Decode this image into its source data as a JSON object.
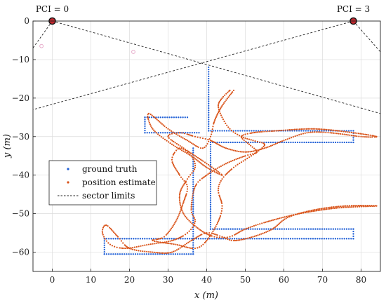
{
  "chart_data": {
    "type": "scatter",
    "xlabel": "x (m)",
    "ylabel": "y (m)",
    "xlim": [
      -5,
      85
    ],
    "ylim": [
      -65,
      0
    ],
    "xticks": [
      0,
      10,
      20,
      30,
      40,
      50,
      60,
      70,
      80
    ],
    "yticks": [
      0,
      -10,
      -20,
      -30,
      -40,
      -50,
      -60
    ],
    "grid": true,
    "legend_position": "left",
    "anchors": [
      {
        "label": "PCI = 0",
        "x": 0,
        "y": 0
      },
      {
        "label": "PCI = 3",
        "x": 78,
        "y": 0
      }
    ],
    "series": [
      {
        "name": "ground truth",
        "color": "#1f5fd6",
        "style": "dots",
        "segments": [
          [
            [
              24,
              -25
            ],
            [
              35,
              -25
            ]
          ],
          [
            [
              24,
              -25
            ],
            [
              24,
              -29
            ]
          ],
          [
            [
              24,
              -29
            ],
            [
              38,
              -29
            ]
          ],
          [
            [
              40.5,
              -12
            ],
            [
              40.5,
              -28.5
            ]
          ],
          [
            [
              40.5,
              -28.5
            ],
            [
              78,
              -28.5
            ]
          ],
          [
            [
              78,
              -28.5
            ],
            [
              78,
              -31.5
            ]
          ],
          [
            [
              78,
              -31.5
            ],
            [
              41,
              -31.5
            ]
          ],
          [
            [
              41,
              -31.5
            ],
            [
              41,
              -54
            ]
          ],
          [
            [
              41,
              -54
            ],
            [
              78,
              -54
            ]
          ],
          [
            [
              78,
              -54
            ],
            [
              78,
              -56.5
            ]
          ],
          [
            [
              78,
              -56.5
            ],
            [
              13.5,
              -56.5
            ]
          ],
          [
            [
              13.5,
              -56.5
            ],
            [
              13.5,
              -60.5
            ]
          ],
          [
            [
              13.5,
              -60.5
            ],
            [
              36.5,
              -60.5
            ]
          ],
          [
            [
              36.5,
              -60.5
            ],
            [
              36.5,
              -33
            ]
          ]
        ]
      },
      {
        "name": "position estimate",
        "color": "#d95319",
        "style": "dots",
        "path": [
          [
            47,
            -18
          ],
          [
            44,
            -22
          ],
          [
            42,
            -26
          ],
          [
            41,
            -30
          ],
          [
            39,
            -33
          ],
          [
            35,
            -31
          ],
          [
            30,
            -28
          ],
          [
            25,
            -24
          ],
          [
            26,
            -28
          ],
          [
            31,
            -32
          ],
          [
            36,
            -35
          ],
          [
            40,
            -38
          ],
          [
            44,
            -40
          ],
          [
            40,
            -37
          ],
          [
            34,
            -33
          ],
          [
            30,
            -30
          ],
          [
            33,
            -29
          ],
          [
            37,
            -30
          ],
          [
            41,
            -31
          ],
          [
            45,
            -33
          ],
          [
            50,
            -34
          ],
          [
            55,
            -33
          ],
          [
            60,
            -31
          ],
          [
            66,
            -29
          ],
          [
            72,
            -29
          ],
          [
            80,
            -30
          ],
          [
            84,
            -30
          ],
          [
            78,
            -29
          ],
          [
            68,
            -28
          ],
          [
            58,
            -28.5
          ],
          [
            52,
            -29
          ],
          [
            49,
            -30
          ],
          [
            51,
            -32
          ],
          [
            53,
            -34
          ],
          [
            50,
            -35
          ],
          [
            45,
            -37
          ],
          [
            40,
            -40
          ],
          [
            37,
            -43
          ],
          [
            36,
            -49
          ],
          [
            37,
            -52
          ],
          [
            35,
            -55
          ],
          [
            31,
            -57
          ],
          [
            25,
            -58
          ],
          [
            19,
            -59
          ],
          [
            15,
            -58
          ],
          [
            13,
            -55
          ],
          [
            14,
            -53
          ],
          [
            17,
            -56
          ],
          [
            20,
            -59
          ],
          [
            26,
            -60
          ],
          [
            31,
            -60
          ],
          [
            36,
            -57
          ],
          [
            40,
            -55
          ],
          [
            44,
            -56
          ],
          [
            47,
            -57
          ],
          [
            52,
            -56
          ],
          [
            57,
            -54
          ],
          [
            61,
            -51
          ],
          [
            68,
            -49
          ],
          [
            76,
            -48
          ],
          [
            84,
            -48
          ],
          [
            74,
            -48.5
          ],
          [
            64,
            -50
          ],
          [
            56,
            -52
          ],
          [
            50,
            -54
          ],
          [
            46,
            -56
          ],
          [
            42,
            -56
          ],
          [
            38,
            -54
          ],
          [
            34,
            -50
          ],
          [
            33,
            -45
          ],
          [
            35,
            -41
          ],
          [
            37,
            -38
          ],
          [
            36,
            -35
          ],
          [
            33,
            -33
          ],
          [
            31,
            -36
          ],
          [
            33,
            -40
          ],
          [
            35,
            -43
          ],
          [
            34,
            -47
          ],
          [
            32,
            -52
          ],
          [
            29,
            -56
          ],
          [
            26,
            -57
          ],
          [
            32,
            -58
          ],
          [
            37,
            -59
          ],
          [
            40,
            -57
          ],
          [
            43,
            -52
          ],
          [
            44,
            -48
          ],
          [
            43,
            -44
          ],
          [
            44,
            -41
          ],
          [
            47,
            -38
          ],
          [
            50,
            -36
          ],
          [
            53,
            -34
          ],
          [
            55,
            -32
          ],
          [
            52,
            -31
          ],
          [
            49,
            -30
          ],
          [
            46,
            -28
          ],
          [
            44,
            -25
          ],
          [
            43,
            -22
          ],
          [
            44,
            -20
          ],
          [
            46,
            -18
          ]
        ]
      },
      {
        "name": "sector limits",
        "color": "#222222",
        "style": "dashed",
        "segments": [
          [
            [
              0,
              0
            ],
            [
              -5,
              -7
            ]
          ],
          [
            [
              0,
              0
            ],
            [
              85,
              -24
            ]
          ],
          [
            [
              78,
              0
            ],
            [
              -5,
              -23
            ]
          ],
          [
            [
              78,
              0
            ],
            [
              85,
              -8
            ]
          ]
        ]
      }
    ],
    "markers": [
      {
        "x": -2.8,
        "y": -6.5,
        "color": "#e6a8c8"
      },
      {
        "x": 21,
        "y": -8,
        "color": "#e6a8c8"
      }
    ]
  }
}
